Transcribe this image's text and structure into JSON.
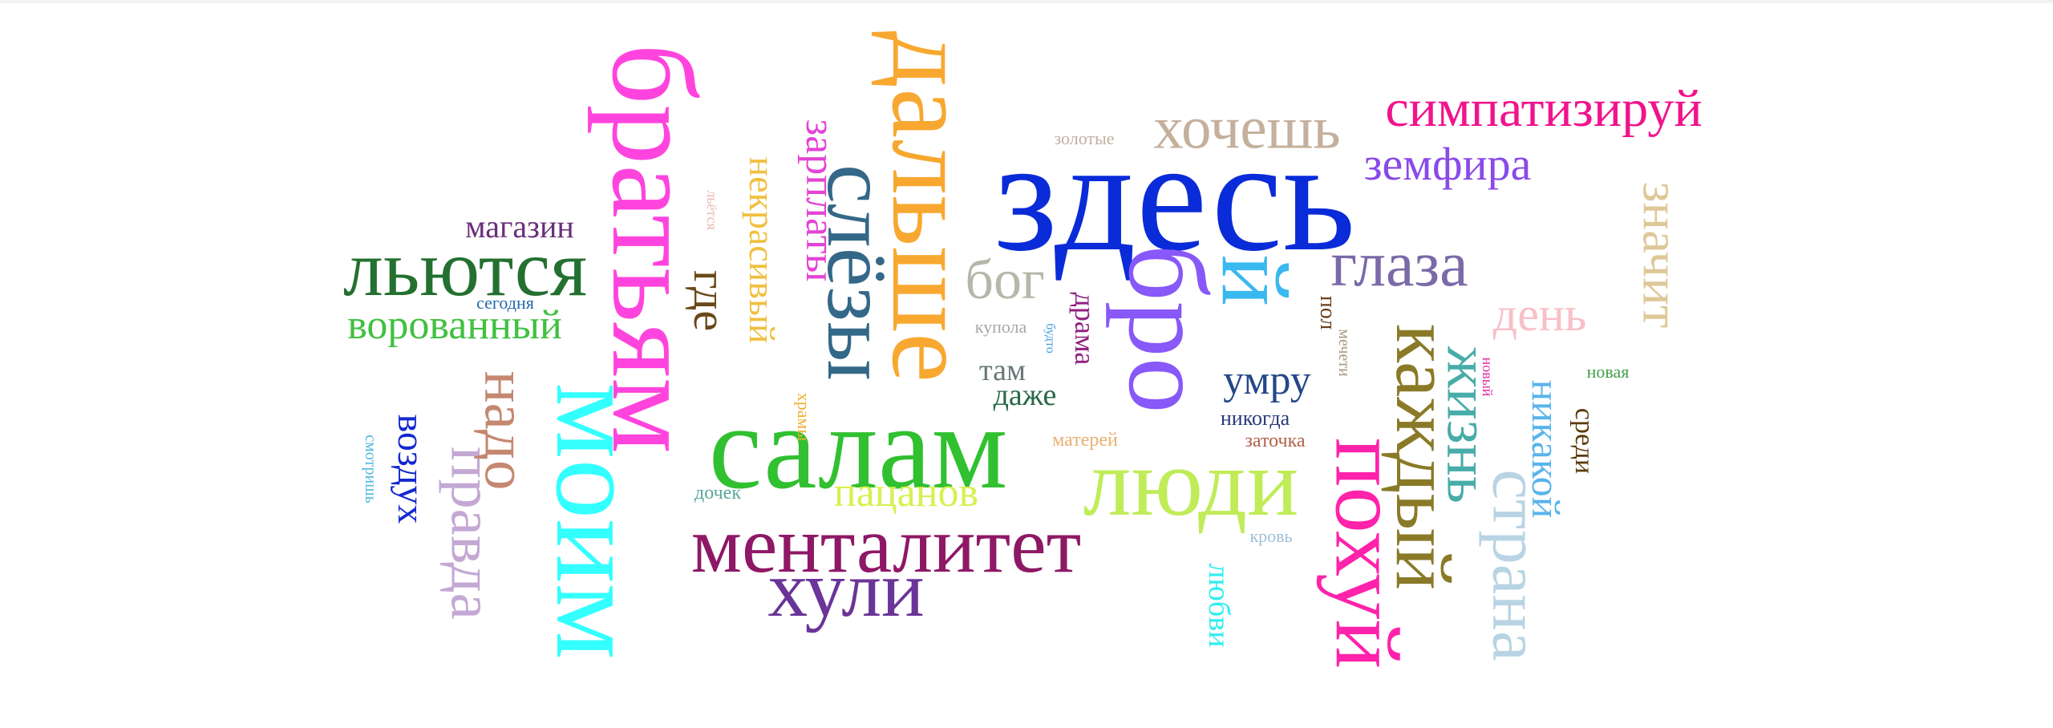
{
  "words": [
    {
      "text": "здесь",
      "color": "#0a2bd8",
      "orientation": "horizontal"
    },
    {
      "text": "братьям",
      "color": "#ff44de",
      "orientation": "vertical"
    },
    {
      "text": "моим",
      "color": "#33ffff",
      "orientation": "vertical"
    },
    {
      "text": "дальше",
      "color": "#f8a830",
      "orientation": "vertical"
    },
    {
      "text": "салам",
      "color": "#30c030",
      "orientation": "horizontal"
    },
    {
      "text": "бро",
      "color": "#8858f8",
      "orientation": "vertical"
    },
    {
      "text": "похуй",
      "color": "#ff22aa",
      "orientation": "vertical"
    },
    {
      "text": "каждый",
      "color": "#8a7a28",
      "orientation": "vertical"
    },
    {
      "text": "люди",
      "color": "#c0ec58",
      "orientation": "horizontal"
    },
    {
      "text": "менталитет",
      "color": "#8e1866",
      "orientation": "horizontal"
    },
    {
      "text": "слёзы",
      "color": "#346888",
      "orientation": "vertical"
    },
    {
      "text": "хули",
      "color": "#6a3498",
      "orientation": "horizontal"
    },
    {
      "text": "льются",
      "color": "#247030",
      "orientation": "horizontal"
    },
    {
      "text": "страна",
      "color": "#b8d4e4",
      "orientation": "vertical"
    },
    {
      "text": "хочешь",
      "color": "#c4b09c",
      "orientation": "horizontal"
    },
    {
      "text": "симпатизируй",
      "color": "#f0148c",
      "orientation": "horizontal"
    },
    {
      "text": "значит",
      "color": "#dec898",
      "orientation": "vertical"
    },
    {
      "text": "жизнь",
      "color": "#48aca8",
      "orientation": "vertical"
    },
    {
      "text": "глаза",
      "color": "#7a6aa8",
      "orientation": "horizontal"
    },
    {
      "text": "правда",
      "color": "#c4a8d4",
      "orientation": "vertical"
    },
    {
      "text": "надо",
      "color": "#c48870",
      "orientation": "vertical"
    },
    {
      "text": "ворованный",
      "color": "#40c040",
      "orientation": "horizontal"
    },
    {
      "text": "зарплаты",
      "color": "#e444d4",
      "orientation": "vertical"
    },
    {
      "text": "некрасивый",
      "color": "#f0c040",
      "orientation": "vertical"
    },
    {
      "text": "никакой",
      "color": "#58b4ec",
      "orientation": "vertical"
    },
    {
      "text": "земфира",
      "color": "#8a4ae8",
      "orientation": "horizontal"
    },
    {
      "text": "день",
      "color": "#f8c0c8",
      "orientation": "horizontal"
    },
    {
      "text": "умру",
      "color": "#244888",
      "orientation": "horizontal"
    },
    {
      "text": "бог",
      "color": "#b4b8a8",
      "orientation": "horizontal"
    },
    {
      "text": "пацанов",
      "color": "#d8f050",
      "orientation": "horizontal"
    },
    {
      "text": "где",
      "color": "#6a4818",
      "orientation": "vertical"
    },
    {
      "text": "воздух",
      "color": "#1428d0",
      "orientation": "vertical"
    },
    {
      "text": "магазин",
      "color": "#6a2e7a",
      "orientation": "horizontal"
    },
    {
      "text": "любви",
      "color": "#2ceef0",
      "orientation": "vertical"
    },
    {
      "text": "й",
      "color": "#3ab8f0",
      "orientation": "vertical"
    },
    {
      "text": "там",
      "color": "#687878",
      "orientation": "horizontal"
    },
    {
      "text": "даже",
      "color": "#286848",
      "orientation": "horizontal"
    },
    {
      "text": "драма",
      "color": "#902080",
      "orientation": "vertical"
    },
    {
      "text": "пол",
      "color": "#6a3e18",
      "orientation": "vertical"
    },
    {
      "text": "среди",
      "color": "#5a3a08",
      "orientation": "vertical"
    },
    {
      "text": "никогда",
      "color": "#283a78",
      "orientation": "horizontal"
    },
    {
      "text": "заточка",
      "color": "#b06048",
      "orientation": "horizontal"
    },
    {
      "text": "матерей",
      "color": "#e8b070",
      "orientation": "horizontal"
    },
    {
      "text": "дочек",
      "color": "#58a898",
      "orientation": "horizontal"
    },
    {
      "text": "храмы",
      "color": "#f0b030",
      "orientation": "vertical"
    },
    {
      "text": "купола",
      "color": "#a8a8a8",
      "orientation": "horizontal"
    },
    {
      "text": "будто",
      "color": "#40a0e0",
      "orientation": "vertical"
    },
    {
      "text": "мечети",
      "color": "#a89880",
      "orientation": "vertical"
    },
    {
      "text": "новый",
      "color": "#e030a0",
      "orientation": "vertical"
    },
    {
      "text": "новая",
      "color": "#40a048",
      "orientation": "horizontal"
    },
    {
      "text": "сегодня",
      "color": "#2868a8",
      "orientation": "horizontal"
    },
    {
      "text": "кровь",
      "color": "#a0c0d8",
      "orientation": "horizontal"
    },
    {
      "text": "смотришь",
      "color": "#50b8e0",
      "orientation": "vertical"
    },
    {
      "text": "золотые",
      "color": "#c0b0a0",
      "orientation": "horizontal"
    },
    {
      "text": "льётся",
      "color": "#e8b8b0",
      "orientation": "vertical"
    }
  ]
}
